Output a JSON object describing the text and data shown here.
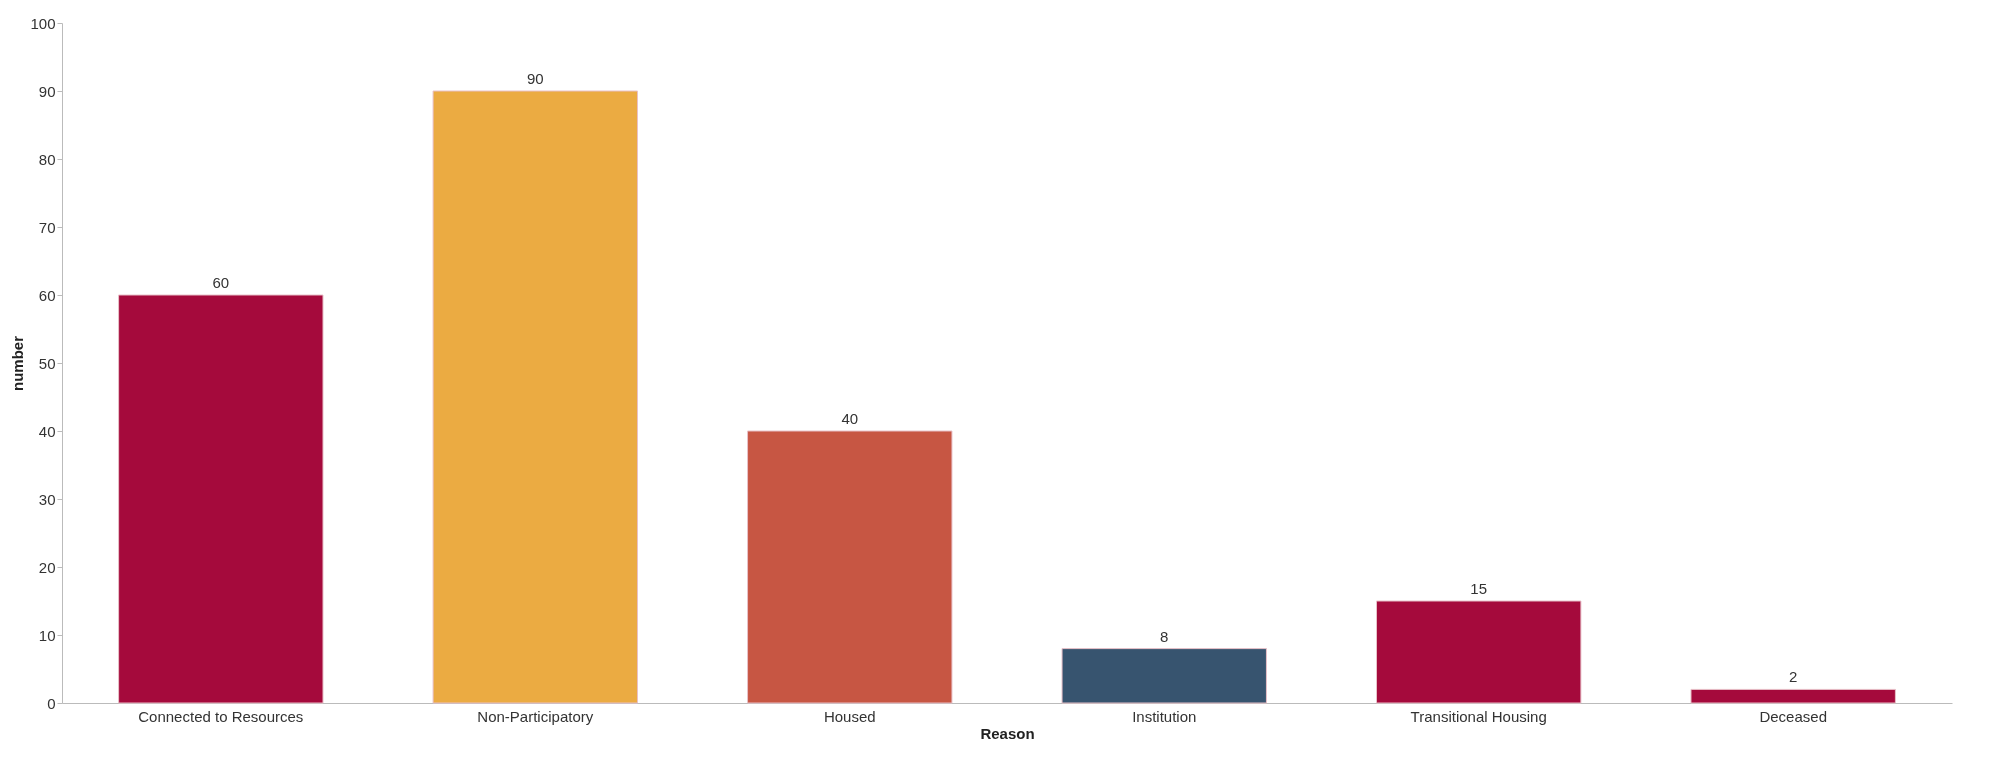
{
  "chart_data": {
    "type": "bar",
    "xlabel": "Reason",
    "ylabel": "number",
    "categories": [
      "Connected to Resources",
      "Non-Participatory",
      "Housed",
      "Institution",
      "Transitional Housing",
      "Deceased"
    ],
    "values": [
      60,
      90,
      40,
      8,
      15,
      2
    ],
    "colors": [
      "#a50a3c",
      "#ebab42",
      "#c75643",
      "#37546f",
      "#a50a3c",
      "#a50a3c"
    ],
    "ylim": [
      0,
      100
    ],
    "yticks": [
      0,
      10,
      20,
      30,
      40,
      50,
      60,
      70,
      80,
      90,
      100
    ],
    "grid": false,
    "data_labels": true
  }
}
